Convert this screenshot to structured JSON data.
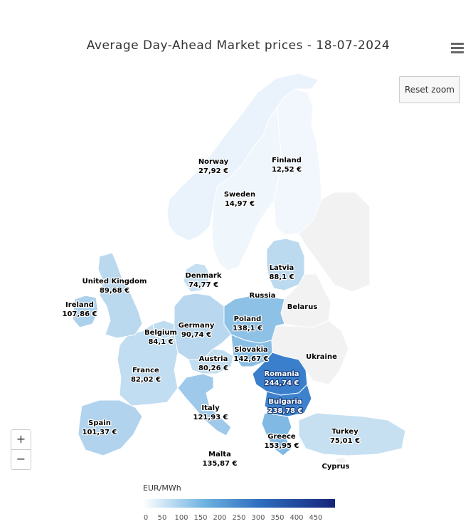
{
  "title": "Average Day-Ahead Market prices - 18-07-2024",
  "controls": {
    "reset_zoom": "Reset zoom",
    "zoom_in": "+",
    "zoom_out": "−"
  },
  "legend": {
    "title": "EUR/MWh",
    "ticks": [
      "0",
      "50",
      "100",
      "150",
      "200",
      "250",
      "300",
      "350",
      "400",
      "450"
    ],
    "min": 0,
    "max": 500
  },
  "countries": [
    {
      "name": "Norway",
      "price": "27,92 €",
      "value": 27.92,
      "color": "#eaf3fb"
    },
    {
      "name": "Finland",
      "price": "12,52 €",
      "value": 12.52,
      "color": "#f1f7fc"
    },
    {
      "name": "Sweden",
      "price": "14,97 €",
      "value": 14.97,
      "color": "#f0f7fc"
    },
    {
      "name": "United Kingdom",
      "price": "89,68 €",
      "value": 89.68,
      "color": "#bad9ef"
    },
    {
      "name": "Ireland",
      "price": "107,86 €",
      "value": 107.86,
      "color": "#acd1ec"
    },
    {
      "name": "Denmark",
      "price": "74,77 €",
      "value": 74.77,
      "color": "#c6e0f2"
    },
    {
      "name": "Latvia",
      "price": "88,1 €",
      "value": 88.1,
      "color": "#bbdaf0"
    },
    {
      "name": "Russia",
      "price": "",
      "value": null,
      "color": "#f2f2f2"
    },
    {
      "name": "Belarus",
      "price": "",
      "value": null,
      "color": "#f2f2f2"
    },
    {
      "name": "Poland",
      "price": "138,1 €",
      "value": 138.1,
      "color": "#8ec1e6"
    },
    {
      "name": "Germany",
      "price": "90,74 €",
      "value": 90.74,
      "color": "#b9d8ef"
    },
    {
      "name": "Belgium",
      "price": "84,1 €",
      "value": 84.1,
      "color": "#bfdcf1"
    },
    {
      "name": "Ukraine",
      "price": "",
      "value": null,
      "color": "#f2f2f2"
    },
    {
      "name": "France",
      "price": "82,02 €",
      "value": 82.02,
      "color": "#c0ddf1"
    },
    {
      "name": "Austria",
      "price": "80,26 €",
      "value": 80.26,
      "color": "#c2def1"
    },
    {
      "name": "Slovakia",
      "price": "142,67 €",
      "value": 142.67,
      "color": "#8abfe5"
    },
    {
      "name": "Romania",
      "price": "244,74 €",
      "value": 244.74,
      "color": "#3a7fcc"
    },
    {
      "name": "Italy",
      "price": "121,93 €",
      "value": 121.93,
      "color": "#9ec9ea"
    },
    {
      "name": "Bulgaria",
      "price": "238,78 €",
      "value": 238.78,
      "color": "#3d82cd"
    },
    {
      "name": "Spain",
      "price": "101,37 €",
      "value": 101.37,
      "color": "#b1d3ed"
    },
    {
      "name": "Turkey",
      "price": "75,01 €",
      "value": 75.01,
      "color": "#c6e0f2"
    },
    {
      "name": "Greece",
      "price": "153,95 €",
      "value": 153.95,
      "color": "#80b9e3"
    },
    {
      "name": "Malta",
      "price": "135,87 €",
      "value": 135.87,
      "color": "#90c3e7"
    },
    {
      "name": "Cyprus",
      "price": "",
      "value": null,
      "color": "#f2f2f2"
    }
  ]
}
